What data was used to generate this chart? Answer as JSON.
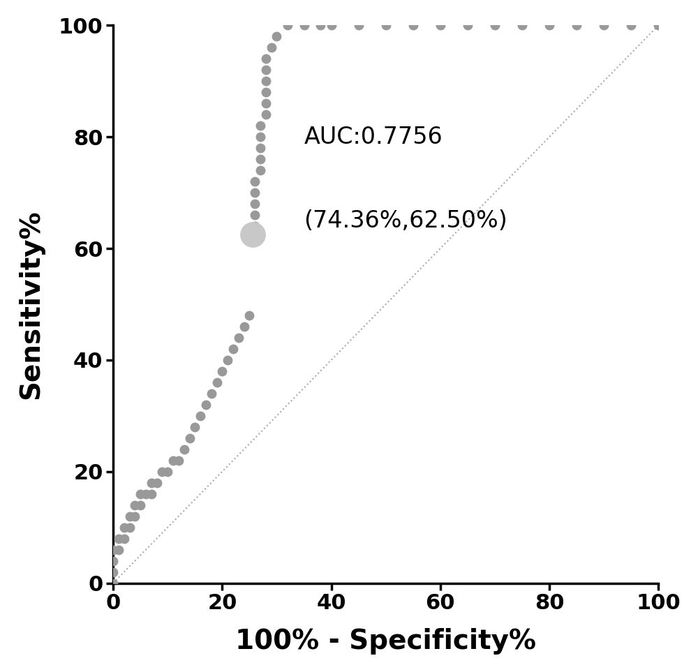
{
  "auc": "0.7756",
  "optimal_point": [
    25.64,
    62.5
  ],
  "annotation_text_line1": "AUC:0.7756",
  "annotation_text_line2": "(74.36%,62.50%)",
  "xlabel": "100% - Specificity%",
  "ylabel": "Sensitivity%",
  "curve_color": "#999999",
  "optimal_point_color": "#c8c8c8",
  "dot_size": 100,
  "optimal_dot_size": 700,
  "diagonal_color": "#aaaaaa",
  "background_color": "#ffffff",
  "xlim": [
    0,
    100
  ],
  "ylim": [
    0,
    100
  ],
  "xticks": [
    0,
    20,
    40,
    60,
    80,
    100
  ],
  "yticks": [
    0,
    20,
    40,
    60,
    80,
    100
  ],
  "annotation_fontsize": 24,
  "axis_label_fontsize": 28,
  "tick_fontsize": 22,
  "roc_x": [
    0,
    0,
    0,
    0,
    1,
    1,
    2,
    2,
    3,
    3,
    4,
    4,
    5,
    5,
    6,
    7,
    7,
    8,
    9,
    10,
    11,
    12,
    13,
    14,
    15,
    16,
    17,
    18,
    19,
    20,
    21,
    22,
    23,
    24,
    25,
    25,
    26,
    26,
    26,
    26,
    26,
    27,
    27,
    27,
    27,
    27,
    28,
    28,
    28,
    28,
    28,
    28,
    29,
    30,
    32,
    35,
    38,
    40,
    45,
    50,
    55,
    60,
    65,
    70,
    75,
    80,
    85,
    90,
    95,
    100
  ],
  "roc_y": [
    0,
    2,
    4,
    6,
    6,
    8,
    8,
    10,
    10,
    12,
    12,
    14,
    14,
    16,
    16,
    16,
    18,
    18,
    20,
    20,
    22,
    22,
    24,
    26,
    28,
    30,
    32,
    34,
    36,
    38,
    40,
    42,
    44,
    46,
    48,
    62,
    64,
    66,
    68,
    70,
    72,
    74,
    76,
    78,
    80,
    82,
    84,
    86,
    88,
    90,
    92,
    94,
    96,
    98,
    100,
    100,
    100,
    100,
    100,
    100,
    100,
    100,
    100,
    100,
    100,
    100,
    100,
    100,
    100,
    100
  ]
}
